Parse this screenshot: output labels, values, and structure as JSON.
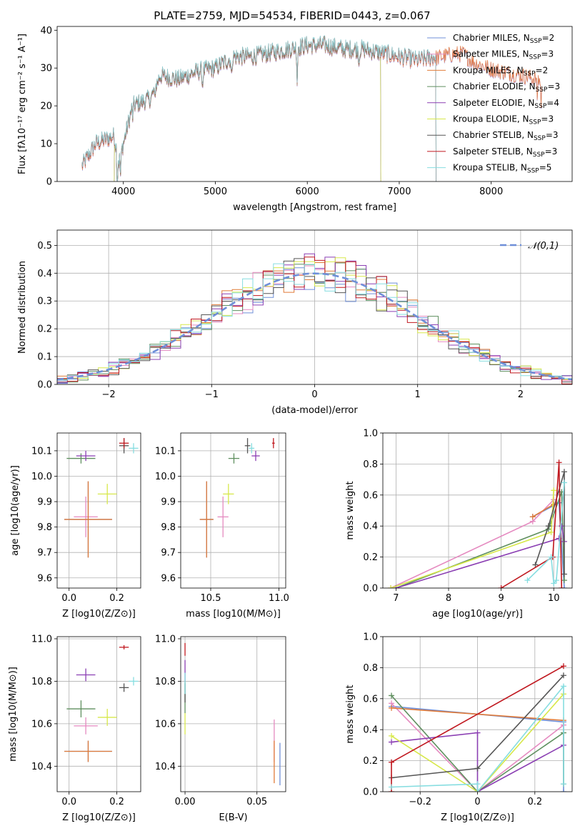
{
  "colors": {
    "Chabrier MILES": "#6f8fd8",
    "Salpeter MILES": "#e58ac0",
    "Kroupa MILES": "#e07b39",
    "Chabrier ELODIE": "#5f8f5f",
    "Salpeter ELODIE": "#8b3fb3",
    "Kroupa ELODIE": "#d7e84a",
    "Chabrier STELIB": "#555555",
    "Salpeter STELIB": "#c0181f",
    "Kroupa STELIB": "#86dde0"
  },
  "chart_data": [
    {
      "type": "line",
      "title": "PLATE=2759, MJD=54534, FIBERID=0443, z=0.067",
      "xlabel": "wavelength [Angstrom, rest frame]",
      "ylabel": "Flux [fλ10⁻¹⁷ erg cm⁻² s⁻¹ A⁻¹]",
      "xlim": [
        3280,
        8880
      ],
      "ylim": [
        0,
        41
      ],
      "xticks": [
        4000,
        5000,
        6000,
        7000,
        8000
      ],
      "yticks": [
        0,
        10,
        20,
        30,
        40
      ],
      "legend_position": "top-right",
      "legend": [
        {
          "model": "Chabrier MILES",
          "n": "2"
        },
        {
          "model": "Salpeter MILES",
          "n": "3"
        },
        {
          "model": "Kroupa MILES",
          "n": "2"
        },
        {
          "model": "Chabrier ELODIE",
          "n": "3"
        },
        {
          "model": "Salpeter ELODIE",
          "n": "4"
        },
        {
          "model": "Kroupa ELODIE",
          "n": "3"
        },
        {
          "model": "Chabrier STELIB",
          "n": "3"
        },
        {
          "model": "Salpeter STELIB",
          "n": "3"
        },
        {
          "model": "Kroupa STELIB",
          "n": "5"
        }
      ],
      "spectrum_envelope": {
        "wavelength": [
          3550,
          3700,
          3900,
          3950,
          4100,
          4300,
          4400,
          4600,
          4800,
          5000,
          5200,
          5400,
          5600,
          5800,
          6000,
          6200,
          6400,
          6600,
          6800,
          7000,
          7200,
          7400,
          7600,
          7700,
          7800,
          8000,
          8200,
          8400,
          8550
        ],
        "flux": [
          4,
          10,
          12,
          5,
          20,
          22,
          28,
          27,
          29,
          30,
          33,
          33,
          34,
          35,
          36,
          36,
          35,
          35,
          34,
          33,
          32,
          33,
          34,
          34,
          32,
          30,
          29,
          28,
          27
        ]
      },
      "model_ranges": {
        "Kroupa ELODIE": [
          3900,
          6800
        ],
        "Salpeter ELODIE": [
          3900,
          6800
        ],
        "Chabrier ELODIE": [
          3900,
          6800
        ],
        "Chabrier STELIB": [
          3550,
          7400
        ],
        "Salpeter STELIB": [
          3550,
          7400
        ],
        "Kroupa STELIB": [
          3550,
          7400
        ]
      }
    },
    {
      "type": "line",
      "xlabel": "(data-model)/error",
      "ylabel": "Normed distribution",
      "xlim": [
        -2.5,
        2.5
      ],
      "ylim": [
        0,
        0.555
      ],
      "xticks": [
        -2,
        -1,
        0,
        1,
        2
      ],
      "yticks": [
        0.0,
        0.1,
        0.2,
        0.3,
        0.4,
        0.5
      ],
      "bin_width": 0.1,
      "reference_curve": "𝒩(0,1)",
      "legend_position": "top-right"
    },
    {
      "type": "scatter",
      "xlabel": "Z [log10(Z/Z⊙)]",
      "ylabel": "age  [log10(age/yr)]",
      "xlim": [
        -0.05,
        0.3
      ],
      "ylim": [
        9.56,
        10.17
      ],
      "xticks": [
        0.0,
        0.2
      ],
      "yticks": [
        9.6,
        9.7,
        9.8,
        9.9,
        10.0,
        10.1
      ],
      "points": [
        {
          "model": "Chabrier MILES",
          "x": 0.08,
          "xerr": 0.1,
          "y": 9.83,
          "yerr": 0.15
        },
        {
          "model": "Salpeter MILES",
          "x": 0.07,
          "xerr": 0.05,
          "y": 9.84,
          "yerr": 0.08
        },
        {
          "model": "Kroupa MILES",
          "x": 0.08,
          "xerr": 0.1,
          "y": 9.83,
          "yerr": 0.15
        },
        {
          "model": "Chabrier ELODIE",
          "x": 0.05,
          "xerr": 0.06,
          "y": 10.07,
          "yerr": 0.02
        },
        {
          "model": "Salpeter ELODIE",
          "x": 0.07,
          "xerr": 0.04,
          "y": 10.08,
          "yerr": 0.02
        },
        {
          "model": "Kroupa ELODIE",
          "x": 0.16,
          "xerr": 0.04,
          "y": 9.93,
          "yerr": 0.04
        },
        {
          "model": "Chabrier STELIB",
          "x": 0.23,
          "xerr": 0.02,
          "y": 10.12,
          "yerr": 0.03
        },
        {
          "model": "Salpeter STELIB",
          "x": 0.23,
          "xerr": 0.02,
          "y": 10.13,
          "yerr": 0.02
        },
        {
          "model": "Kroupa STELIB",
          "x": 0.27,
          "xerr": 0.02,
          "y": 10.11,
          "yerr": 0.02
        }
      ]
    },
    {
      "type": "scatter",
      "xlabel": "mass [log10(M/M⊙)]",
      "ylabel": "",
      "xlim": [
        10.28,
        11.05
      ],
      "ylim": [
        9.56,
        10.17
      ],
      "xticks": [
        10.5,
        11.0
      ],
      "yticks": [
        9.6,
        9.7,
        9.8,
        9.9,
        10.0,
        10.1
      ],
      "points": [
        {
          "model": "Chabrier MILES",
          "x": 10.47,
          "xerr": 0.05,
          "y": 9.83,
          "yerr": 0.15
        },
        {
          "model": "Salpeter MILES",
          "x": 10.59,
          "xerr": 0.04,
          "y": 9.84,
          "yerr": 0.08
        },
        {
          "model": "Kroupa MILES",
          "x": 10.47,
          "xerr": 0.05,
          "y": 9.83,
          "yerr": 0.15
        },
        {
          "model": "Chabrier ELODIE",
          "x": 10.67,
          "xerr": 0.04,
          "y": 10.07,
          "yerr": 0.02
        },
        {
          "model": "Salpeter ELODIE",
          "x": 10.83,
          "xerr": 0.03,
          "y": 10.08,
          "yerr": 0.02
        },
        {
          "model": "Kroupa ELODIE",
          "x": 10.63,
          "xerr": 0.04,
          "y": 9.93,
          "yerr": 0.04
        },
        {
          "model": "Chabrier STELIB",
          "x": 10.77,
          "xerr": 0.02,
          "y": 10.12,
          "yerr": 0.03
        },
        {
          "model": "Salpeter STELIB",
          "x": 10.96,
          "xerr": 0.01,
          "y": 10.13,
          "yerr": 0.02
        },
        {
          "model": "Kroupa STELIB",
          "x": 10.8,
          "xerr": 0.02,
          "y": 10.11,
          "yerr": 0.02
        }
      ]
    },
    {
      "type": "line",
      "xlabel": "age  [log10(age/yr)]",
      "ylabel": "mass weight",
      "xlim": [
        6.75,
        10.35
      ],
      "ylim": [
        0,
        1.0
      ],
      "xticks": [
        7,
        8,
        9,
        10
      ],
      "yticks": [
        0.0,
        0.2,
        0.4,
        0.6,
        0.8,
        1.0
      ],
      "series": [
        {
          "model": "Chabrier MILES",
          "x": [
            9.6,
            10.1,
            10.2
          ],
          "y": [
            0.46,
            0.55,
            0.0
          ]
        },
        {
          "model": "Salpeter MILES",
          "x": [
            6.9,
            9.6,
            10.0
          ],
          "y": [
            0.0,
            0.43,
            0.57
          ]
        },
        {
          "model": "Kroupa MILES",
          "x": [
            9.6,
            10.0
          ],
          "y": [
            0.46,
            0.54
          ]
        },
        {
          "model": "Chabrier ELODIE",
          "x": [
            7.0,
            9.9,
            10.15,
            10.2
          ],
          "y": [
            0.0,
            0.38,
            0.62,
            0.05
          ]
        },
        {
          "model": "Salpeter ELODIE",
          "x": [
            7.0,
            10.1,
            10.15,
            10.2
          ],
          "y": [
            0.0,
            0.32,
            0.4,
            0.3
          ]
        },
        {
          "model": "Kroupa ELODIE",
          "x": [
            6.9,
            9.95,
            10.0
          ],
          "y": [
            0.0,
            0.36,
            0.63
          ]
        },
        {
          "model": "Chabrier STELIB",
          "x": [
            9.65,
            9.9,
            10.2,
            10.2
          ],
          "y": [
            0.15,
            0.4,
            0.75,
            0.09
          ]
        },
        {
          "model": "Salpeter STELIB",
          "x": [
            9.0,
            9.98,
            10.1,
            10.15
          ],
          "y": [
            0.0,
            0.2,
            0.81,
            0.0
          ]
        },
        {
          "model": "Kroupa STELIB",
          "x": [
            9.5,
            9.95,
            10.0,
            10.05,
            10.2
          ],
          "y": [
            0.05,
            0.2,
            0.03,
            0.05,
            0.68
          ]
        }
      ]
    },
    {
      "type": "scatter",
      "xlabel": "Z [log10(Z/Z⊙)]",
      "ylabel": "mass [log10(M/M⊙)]",
      "xlim": [
        -0.05,
        0.3
      ],
      "ylim": [
        10.28,
        11.01
      ],
      "xticks": [
        0.0,
        0.2
      ],
      "yticks": [
        10.4,
        10.6,
        10.8,
        11.0
      ],
      "points": [
        {
          "model": "Chabrier MILES",
          "x": 0.08,
          "xerr": 0.1,
          "y": 10.47,
          "yerr": 0.05
        },
        {
          "model": "Salpeter MILES",
          "x": 0.07,
          "xerr": 0.05,
          "y": 10.59,
          "yerr": 0.04
        },
        {
          "model": "Kroupa MILES",
          "x": 0.08,
          "xerr": 0.1,
          "y": 10.47,
          "yerr": 0.05
        },
        {
          "model": "Chabrier ELODIE",
          "x": 0.05,
          "xerr": 0.06,
          "y": 10.67,
          "yerr": 0.04
        },
        {
          "model": "Salpeter ELODIE",
          "x": 0.07,
          "xerr": 0.04,
          "y": 10.83,
          "yerr": 0.03
        },
        {
          "model": "Kroupa ELODIE",
          "x": 0.16,
          "xerr": 0.04,
          "y": 10.63,
          "yerr": 0.04
        },
        {
          "model": "Chabrier STELIB",
          "x": 0.23,
          "xerr": 0.02,
          "y": 10.77,
          "yerr": 0.02
        },
        {
          "model": "Salpeter STELIB",
          "x": 0.23,
          "xerr": 0.02,
          "y": 10.96,
          "yerr": 0.01
        },
        {
          "model": "Kroupa STELIB",
          "x": 0.27,
          "xerr": 0.02,
          "y": 10.8,
          "yerr": 0.02
        }
      ]
    },
    {
      "type": "scatter",
      "xlabel": "E(B-V)",
      "ylabel": "",
      "xlim": [
        -0.003,
        0.07
      ],
      "ylim": [
        10.28,
        11.01
      ],
      "xticks": [
        0.0,
        0.05
      ],
      "yticks": [
        10.4,
        10.6,
        10.8,
        11.0
      ],
      "points": [
        {
          "model": "Chabrier MILES",
          "x": 0.066,
          "y": 10.41,
          "yerr": 0.1
        },
        {
          "model": "Salpeter MILES",
          "x": 0.062,
          "y": 10.52,
          "yerr": 0.1
        },
        {
          "model": "Kroupa MILES",
          "x": 0.062,
          "y": 10.42,
          "yerr": 0.1
        },
        {
          "model": "Chabrier ELODIE",
          "x": 0.0,
          "y": 10.72,
          "yerr": 0.07
        },
        {
          "model": "Salpeter ELODIE",
          "x": 0.0,
          "y": 10.85,
          "yerr": 0.05
        },
        {
          "model": "Kroupa ELODIE",
          "x": 0.0,
          "y": 10.6,
          "yerr": 0.05
        },
        {
          "model": "Chabrier STELIB",
          "x": 0.0,
          "y": 10.75,
          "yerr": 0.05
        },
        {
          "model": "Salpeter STELIB",
          "x": 0.0,
          "y": 10.95,
          "yerr": 0.03
        },
        {
          "model": "Kroupa STELIB",
          "x": 0.0,
          "y": 10.79,
          "yerr": 0.05
        }
      ]
    },
    {
      "type": "line",
      "xlabel": "Z [log10(Z/Z⊙)]",
      "ylabel": "mass weight",
      "xlim": [
        -0.33,
        0.33
      ],
      "ylim": [
        0,
        1.0
      ],
      "xticks": [
        -0.2,
        0.0,
        0.2
      ],
      "yticks": [
        0.0,
        0.2,
        0.4,
        0.6,
        0.8,
        1.0
      ],
      "series": [
        {
          "model": "Chabrier MILES",
          "x": [
            -0.3,
            0.3,
            0.3
          ],
          "y": [
            0.55,
            0.45,
            0.0
          ]
        },
        {
          "model": "Salpeter MILES",
          "x": [
            -0.3,
            0.0,
            0.3
          ],
          "y": [
            0.57,
            0.0,
            0.43
          ]
        },
        {
          "model": "Kroupa MILES",
          "x": [
            -0.3,
            0.3
          ],
          "y": [
            0.54,
            0.46
          ]
        },
        {
          "model": "Chabrier ELODIE",
          "x": [
            -0.3,
            0.0,
            0.3,
            0.3
          ],
          "y": [
            0.62,
            0.0,
            0.38,
            0.05
          ]
        },
        {
          "model": "Salpeter ELODIE",
          "x": [
            -0.3,
            0.0,
            0.0,
            0.3
          ],
          "y": [
            0.32,
            0.38,
            0.0,
            0.3
          ]
        },
        {
          "model": "Kroupa ELODIE",
          "x": [
            -0.3,
            0.0,
            0.3
          ],
          "y": [
            0.36,
            0.0,
            0.63
          ]
        },
        {
          "model": "Chabrier STELIB",
          "x": [
            -0.3,
            0.0,
            0.3
          ],
          "y": [
            0.09,
            0.15,
            0.75
          ]
        },
        {
          "model": "Salpeter STELIB",
          "x": [
            -0.3,
            -0.3,
            0.3
          ],
          "y": [
            0.0,
            0.19,
            0.81
          ]
        },
        {
          "model": "Kroupa STELIB",
          "x": [
            -0.3,
            0.0,
            0.0,
            0.3,
            0.3
          ],
          "y": [
            0.03,
            0.05,
            0.0,
            0.68,
            0.05
          ]
        }
      ]
    }
  ]
}
